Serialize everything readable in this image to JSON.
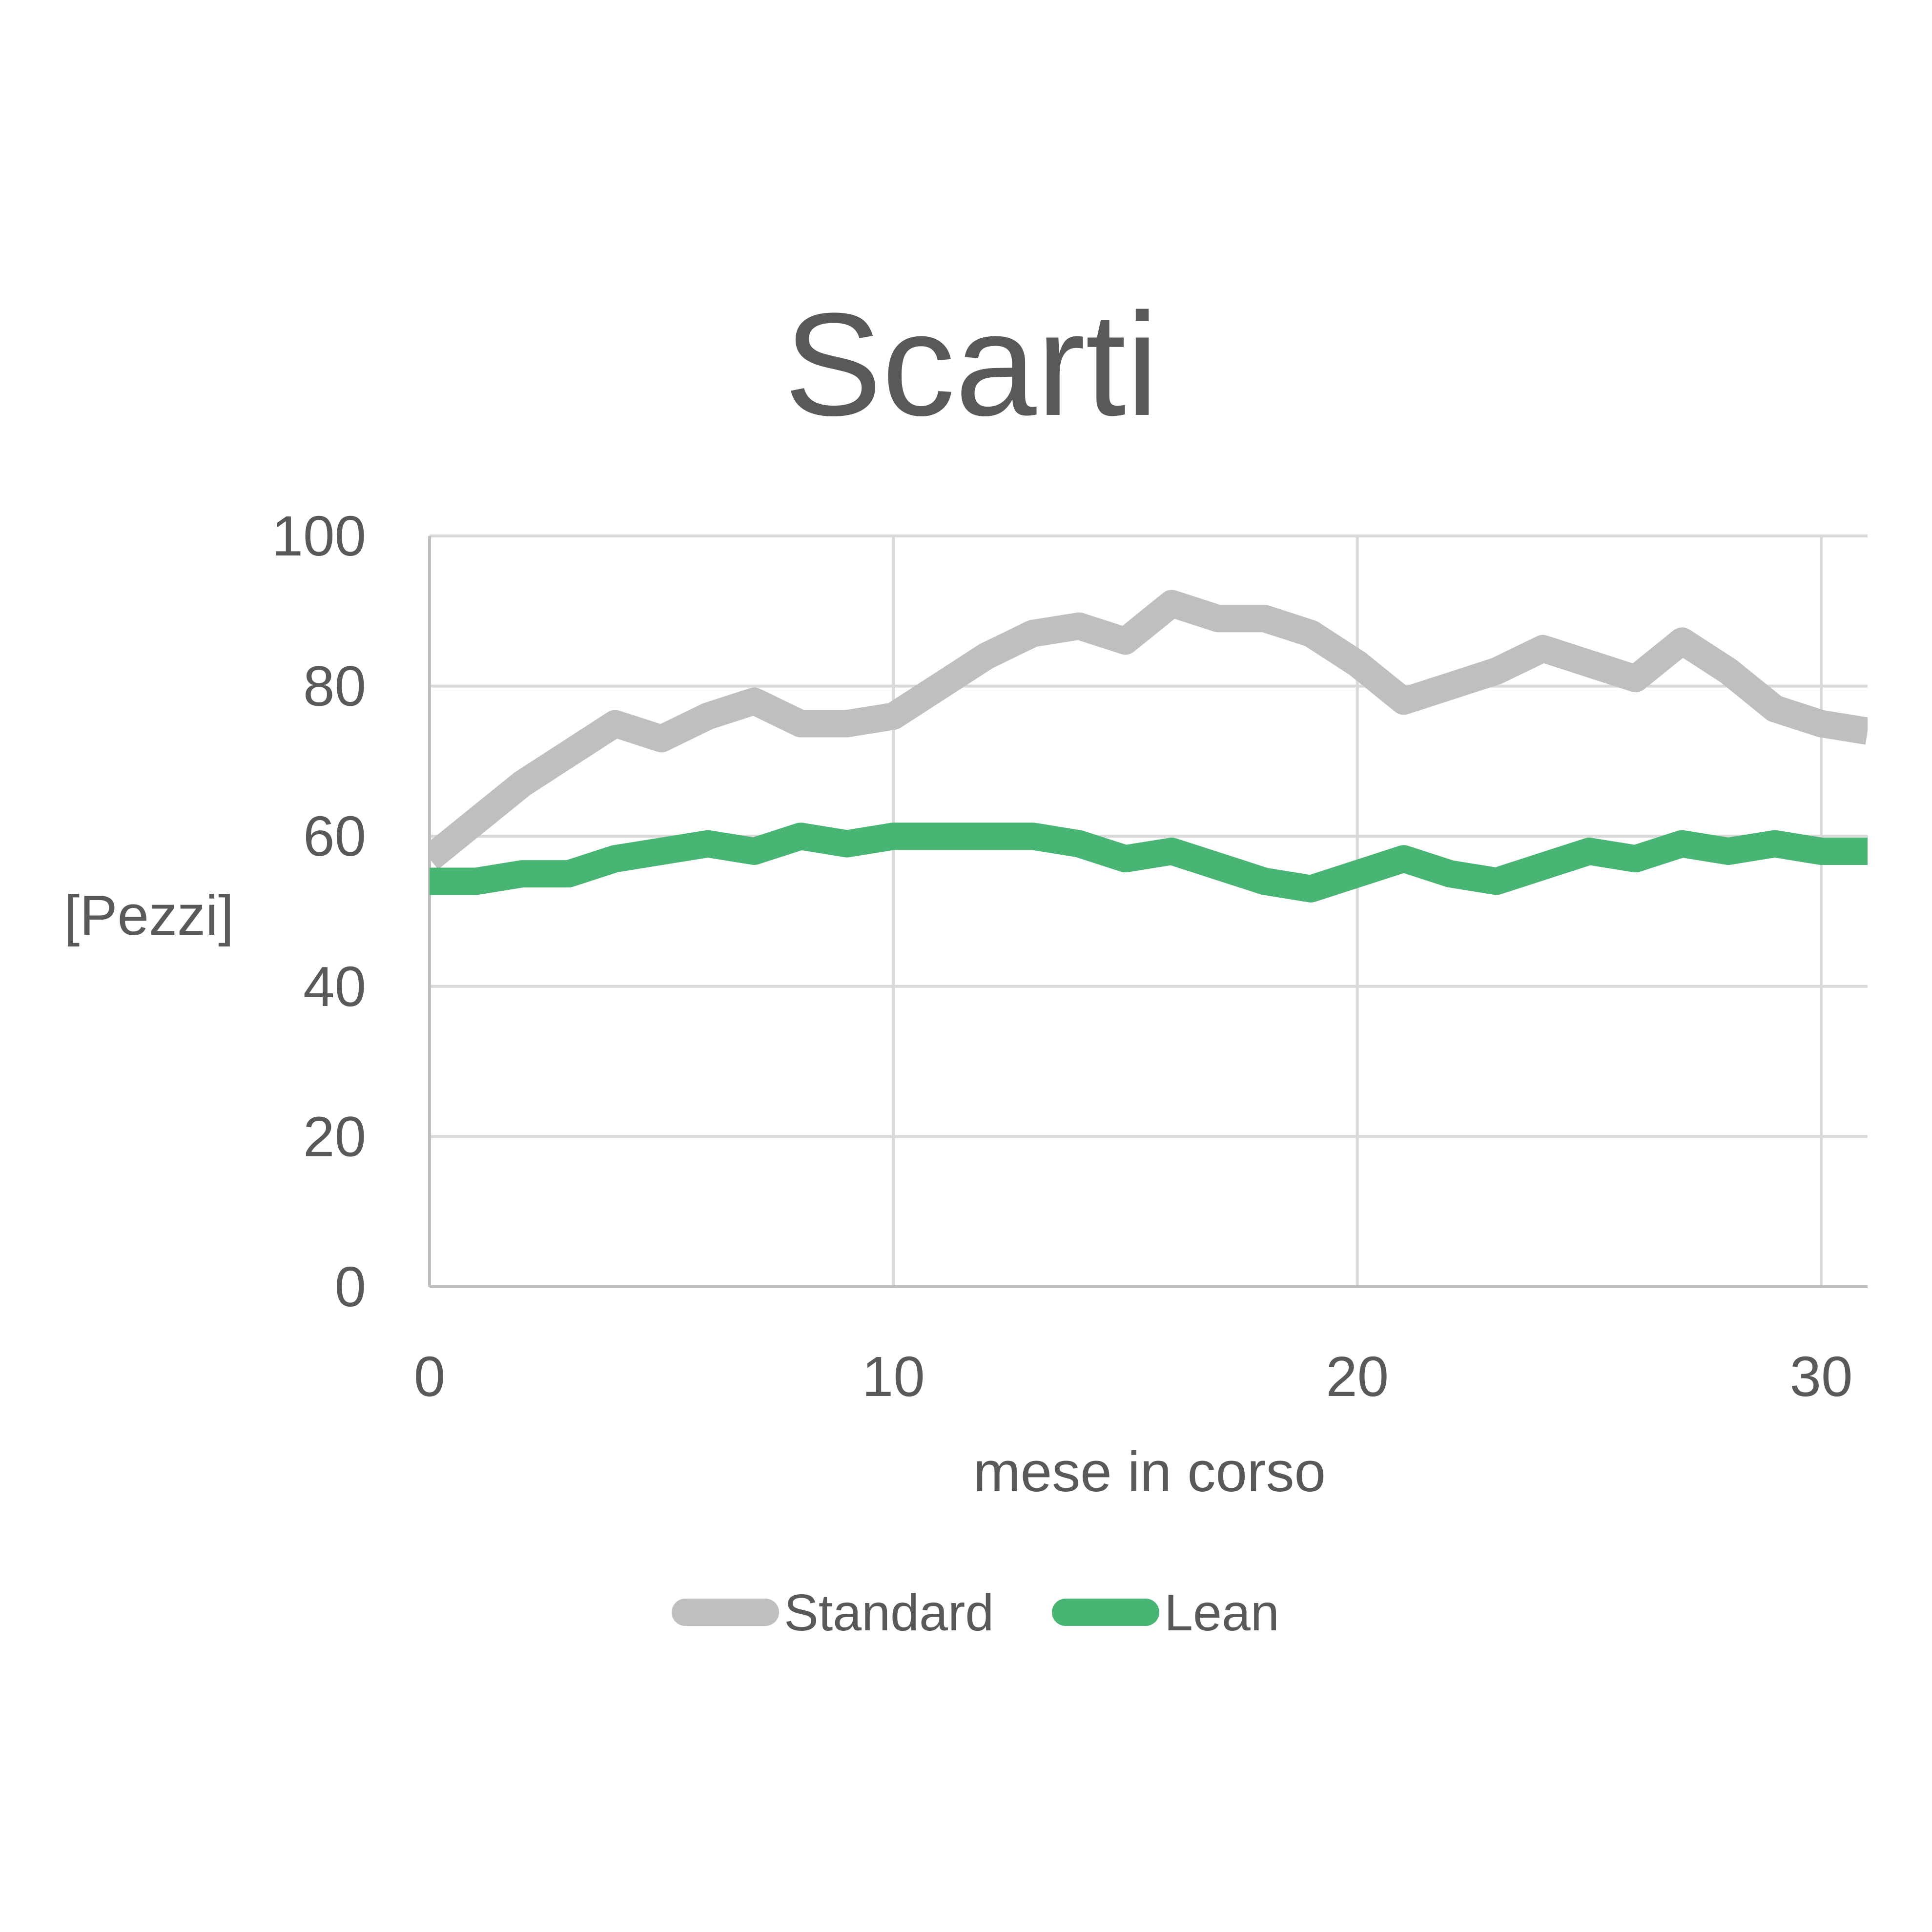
{
  "chart_data": {
    "type": "line",
    "title": "Scarti",
    "xlabel": "mese in corso",
    "ylabel": "[Pezzi]",
    "xlim": [
      0,
      31
    ],
    "ylim": [
      0,
      100
    ],
    "xticks": [
      "0",
      "10",
      "20",
      "30"
    ],
    "yticks": [
      "0",
      "20",
      "40",
      "60",
      "80",
      "100"
    ],
    "grid": true,
    "legend_position": "bottom",
    "x": [
      0,
      1,
      2,
      3,
      4,
      5,
      6,
      7,
      8,
      9,
      10,
      11,
      12,
      13,
      14,
      15,
      16,
      17,
      18,
      19,
      20,
      21,
      22,
      23,
      24,
      25,
      26,
      27,
      28,
      29,
      30,
      31
    ],
    "series": [
      {
        "name": "Standard",
        "color": "#bfbfbf",
        "values": [
          57,
          62,
          67,
          71,
          75,
          73,
          76,
          78,
          75,
          75,
          76,
          80,
          84,
          87,
          88,
          86,
          91,
          89,
          89,
          87,
          83,
          78,
          80,
          82,
          85,
          83,
          81,
          86,
          82,
          77,
          75,
          74
        ]
      },
      {
        "name": "Lean",
        "color": "#48b574",
        "values": [
          54,
          54,
          55,
          55,
          57,
          58,
          59,
          58,
          60,
          59,
          60,
          60,
          60,
          60,
          59,
          57,
          58,
          56,
          54,
          53,
          55,
          57,
          55,
          54,
          56,
          58,
          57,
          59,
          58,
          59,
          58,
          58
        ]
      }
    ]
  }
}
